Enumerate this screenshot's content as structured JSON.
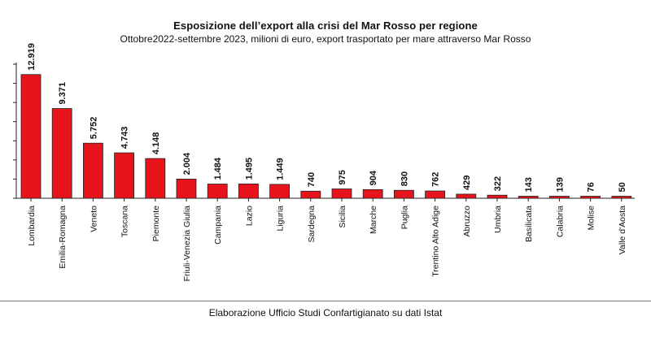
{
  "chart_data": {
    "type": "bar",
    "title": "Esposizione dell’export alla crisi del Mar Rosso per regione",
    "subtitle": "Ottobre2022-settembre 2023, milioni di euro, export trasportato per mare attraverso Mar Rosso",
    "source": "Elaborazione Ufficio Studi Confartigianato su dati Istat",
    "categories": [
      "Lombardia",
      "Emilia-Romagna",
      "Veneto",
      "Toscana",
      "Piemonte",
      "Friuli-Venezia Giulia",
      "Campania",
      "Lazio",
      "Liguria",
      "Sardegna",
      "Sicilia",
      "Marche",
      "Puglia",
      "Trentino Alto Adige",
      "Abruzzo",
      "Umbria",
      "Basilicata",
      "Calabria",
      "Molise",
      "Valle d'Aosta"
    ],
    "values": [
      12919,
      9371,
      5752,
      4743,
      4148,
      2004,
      1484,
      1495,
      1449,
      740,
      975,
      904,
      830,
      762,
      429,
      322,
      143,
      139,
      76,
      50
    ],
    "value_labels": [
      "12.919",
      "9.371",
      "5.752",
      "4.743",
      "4.148",
      "2.004",
      "1.484",
      "1.495",
      "1.449",
      "740",
      "975",
      "904",
      "830",
      "762",
      "429",
      "322",
      "143",
      "139",
      "76",
      "50"
    ],
    "ylim": [
      0,
      14000
    ],
    "grid": false,
    "bar_color": "#e8141b"
  }
}
